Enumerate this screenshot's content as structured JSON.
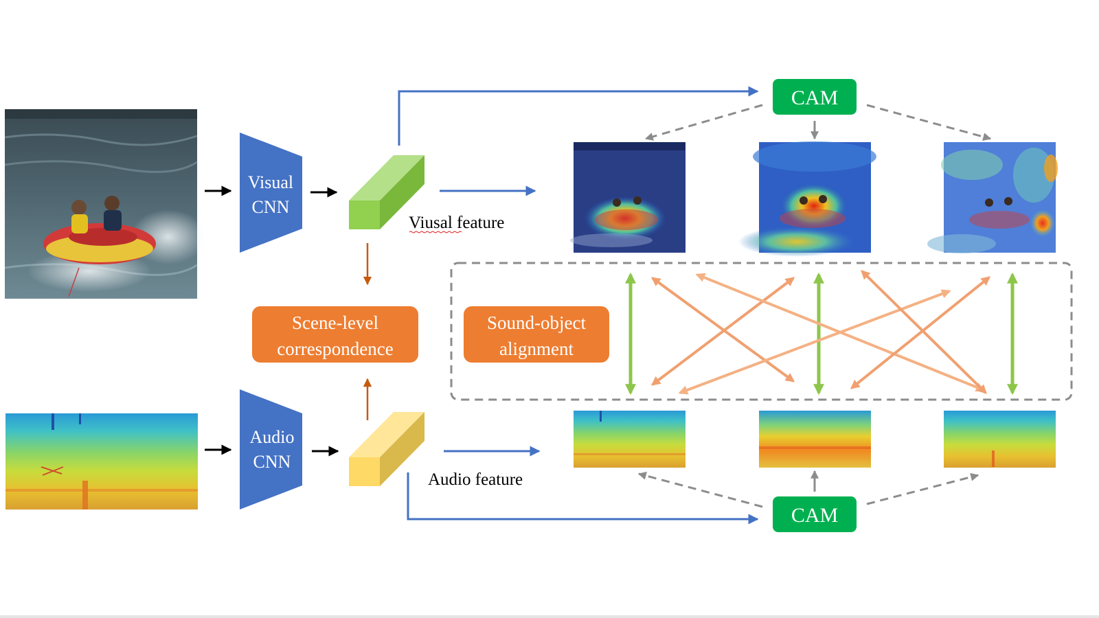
{
  "visual_cnn": {
    "line1": "Visual",
    "line2": "CNN"
  },
  "audio_cnn": {
    "line1": "Audio",
    "line2": "CNN"
  },
  "visual_feature_label": "Viusal feature",
  "audio_feature_label": "Audio feature",
  "scene_level": {
    "line1": "Scene-level",
    "line2": "correspondence"
  },
  "sound_object": {
    "line1": "Sound-object",
    "line2": "alignment"
  },
  "cam_top": "CAM",
  "cam_bottom": "CAM",
  "colors": {
    "cnn_blue": "#4472c4",
    "orange": "#ed7d31",
    "light_orange": "#f4b183",
    "green": "#00b050",
    "lime": "#8dc64a",
    "flow_blue": "#4472c4",
    "dash_gray": "#8c8c8c",
    "feature_green": "#92d050",
    "feature_yellow": "#ffd966"
  }
}
